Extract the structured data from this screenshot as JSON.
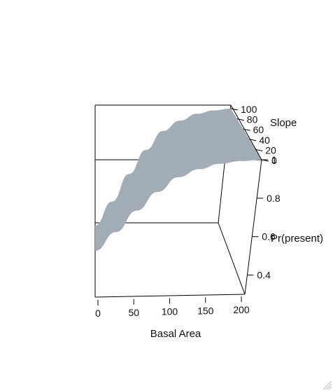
{
  "chart_data": {
    "type": "surface",
    "x": {
      "label": "Basal Area",
      "range": [
        0,
        200
      ],
      "ticks": [
        0,
        50,
        100,
        150,
        200
      ]
    },
    "y": {
      "label": "Slope",
      "range": [
        0,
        100
      ],
      "ticks": [
        0,
        20,
        40,
        60,
        80,
        100
      ]
    },
    "z": {
      "label": "Pr(present)",
      "range": [
        0.3,
        1
      ],
      "ticks": [
        0.4,
        0.6,
        0.8,
        1
      ]
    },
    "surface_color": "#a3acb5",
    "surface_profile": {
      "basal_area": [
        0,
        25,
        50,
        75,
        100,
        125,
        150,
        175,
        200
      ],
      "pr_present": [
        0.32,
        0.46,
        0.62,
        0.76,
        0.87,
        0.93,
        0.97,
        0.99,
        1.0
      ]
    }
  }
}
